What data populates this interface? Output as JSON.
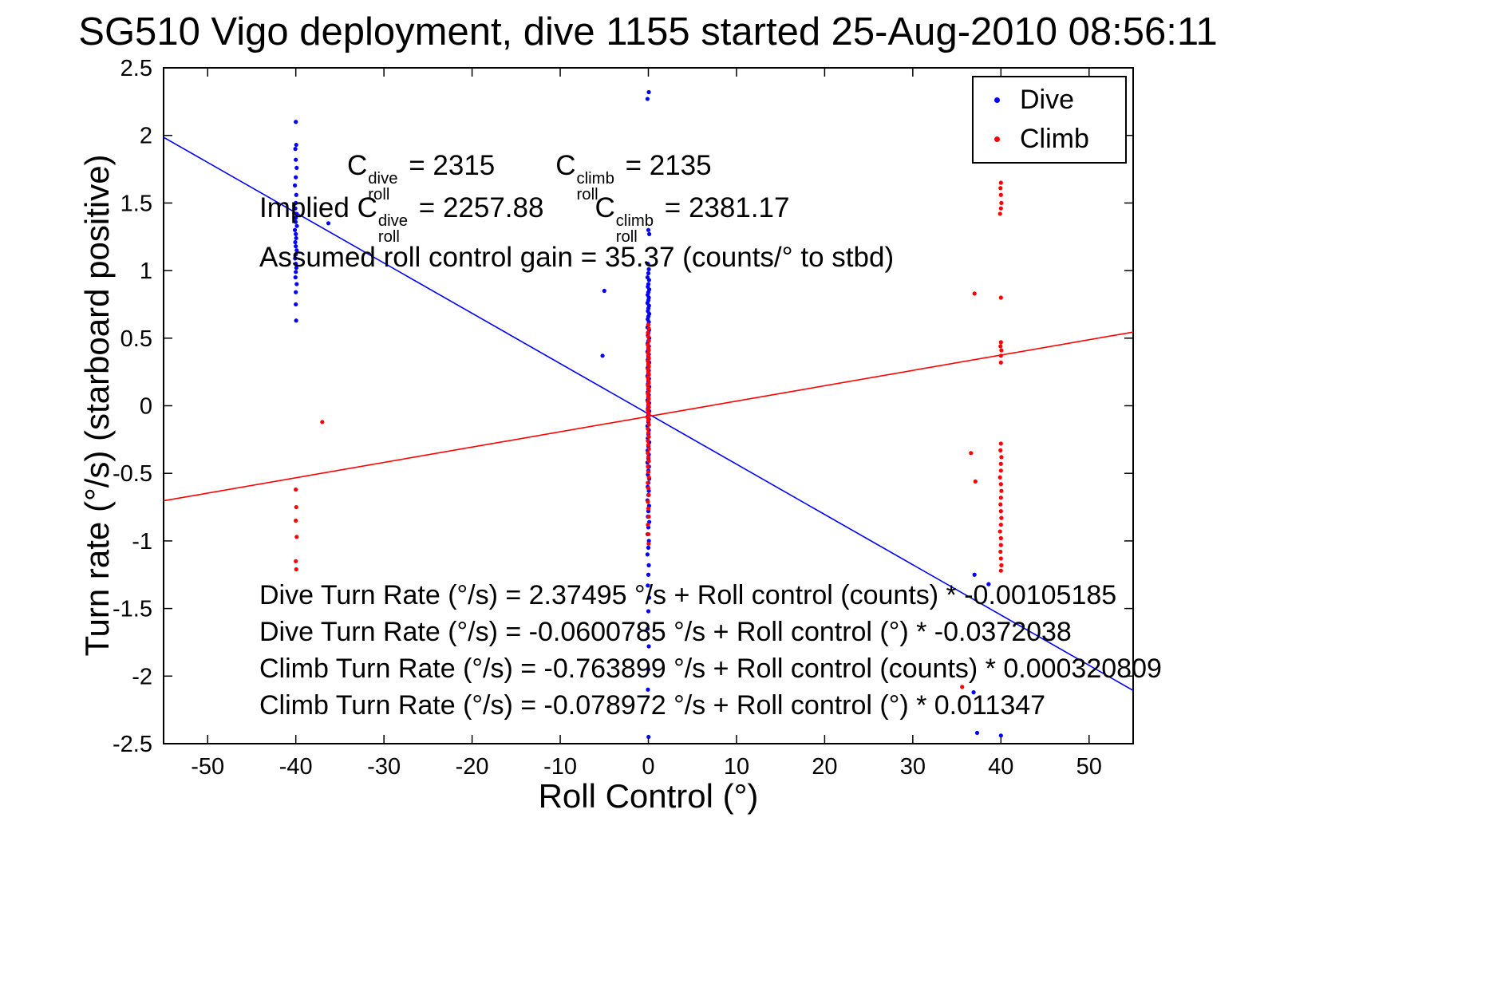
{
  "chart_data": {
    "type": "scatter",
    "title": "SG510 Vigo deployment, dive 1155 started 25-Aug-2010 08:56:11",
    "xlabel": "Roll Control (°)",
    "ylabel": "Turn rate (°/s) (starboard positive)",
    "xlim": [
      -55,
      55
    ],
    "ylim": [
      -2.5,
      2.5
    ],
    "xticks": [
      -50,
      -40,
      -30,
      -20,
      -10,
      0,
      10,
      20,
      30,
      40,
      50
    ],
    "yticks": [
      -2.5,
      -2,
      -1.5,
      -1,
      -0.5,
      0,
      0.5,
      1,
      1.5,
      2,
      2.5
    ],
    "grid": false,
    "axis_color": "#000000",
    "legend": {
      "position": "top-right",
      "entries": [
        {
          "label": "Dive",
          "color": "#0000ff"
        },
        {
          "label": "Climb",
          "color": "#ff0000"
        }
      ]
    },
    "series": [
      {
        "name": "Dive",
        "color": "#0000ff",
        "marker": "dot",
        "points": [
          [
            -40,
            2.1
          ],
          [
            -39.95,
            1.93
          ],
          [
            -40.05,
            1.9
          ],
          [
            -40,
            1.82
          ],
          [
            -39.9,
            1.76
          ],
          [
            -40,
            1.69
          ],
          [
            -40.1,
            1.63
          ],
          [
            -39.95,
            1.56
          ],
          [
            -40,
            1.5
          ],
          [
            -40.05,
            1.46
          ],
          [
            -39.9,
            1.42
          ],
          [
            -40,
            1.39
          ],
          [
            -40.02,
            1.36
          ],
          [
            -39.88,
            1.33
          ],
          [
            -40.1,
            1.3
          ],
          [
            -40,
            1.27
          ],
          [
            -39.96,
            1.24
          ],
          [
            -40.06,
            1.21
          ],
          [
            -40,
            1.18
          ],
          [
            -39.9,
            1.15
          ],
          [
            -40,
            1.12
          ],
          [
            -40.08,
            1.09
          ],
          [
            -40,
            1.05
          ],
          [
            -39.94,
            1.02
          ],
          [
            -40,
            0.99
          ],
          [
            -40.04,
            0.95
          ],
          [
            -39.9,
            0.9
          ],
          [
            -40,
            0.84
          ],
          [
            -40,
            0.75
          ],
          [
            -39.96,
            0.63
          ],
          [
            -36.3,
            1.35
          ],
          [
            -5,
            0.85
          ],
          [
            -5.2,
            0.37
          ],
          [
            0.05,
            2.32
          ],
          [
            -0.1,
            2.27
          ],
          [
            0,
            1.3
          ],
          [
            0.1,
            1.27
          ],
          [
            -0.05,
            1.05
          ],
          [
            0.05,
            1.01
          ],
          [
            0,
            0.98
          ],
          [
            -0.1,
            0.95
          ],
          [
            0.08,
            0.93
          ],
          [
            0,
            0.9
          ],
          [
            -0.06,
            0.88
          ],
          [
            0.1,
            0.86
          ],
          [
            0,
            0.84
          ],
          [
            -0.08,
            0.82
          ],
          [
            0.05,
            0.8
          ],
          [
            0,
            0.78
          ],
          [
            -0.1,
            0.76
          ],
          [
            0.07,
            0.74
          ],
          [
            0,
            0.72
          ],
          [
            -0.05,
            0.7
          ],
          [
            0.1,
            0.68
          ],
          [
            0,
            0.66
          ],
          [
            -0.07,
            0.64
          ],
          [
            0.05,
            0.62
          ],
          [
            0,
            0.6
          ],
          [
            -0.1,
            0.58
          ],
          [
            0.08,
            0.56
          ],
          [
            0,
            0.54
          ],
          [
            -0.05,
            0.52
          ],
          [
            0.1,
            0.5
          ],
          [
            0,
            0.48
          ],
          [
            -0.08,
            0.46
          ],
          [
            0.06,
            0.44
          ],
          [
            0,
            0.42
          ],
          [
            -0.1,
            0.4
          ],
          [
            0.05,
            0.38
          ],
          [
            0,
            0.36
          ],
          [
            -0.06,
            0.34
          ],
          [
            0.1,
            0.32
          ],
          [
            0,
            0.3
          ],
          [
            -0.08,
            0.28
          ],
          [
            0.05,
            0.26
          ],
          [
            0,
            0.24
          ],
          [
            -0.1,
            0.22
          ],
          [
            0.07,
            0.2
          ],
          [
            0,
            0.18
          ],
          [
            -0.05,
            0.16
          ],
          [
            0.1,
            0.14
          ],
          [
            0,
            0.12
          ],
          [
            -0.07,
            0.1
          ],
          [
            0.05,
            0.08
          ],
          [
            0,
            0.06
          ],
          [
            -0.1,
            0.04
          ],
          [
            0.08,
            0.02
          ],
          [
            0,
            0
          ],
          [
            -0.05,
            -0.02
          ],
          [
            0.1,
            -0.04
          ],
          [
            0,
            -0.06
          ],
          [
            -0.08,
            -0.08
          ],
          [
            0.06,
            -0.1
          ],
          [
            0,
            -0.12
          ],
          [
            -0.1,
            -0.15
          ],
          [
            0.05,
            -0.18
          ],
          [
            0,
            -0.21
          ],
          [
            -0.06,
            -0.24
          ],
          [
            0.1,
            -0.27
          ],
          [
            0,
            -0.3
          ],
          [
            -0.08,
            -0.33
          ],
          [
            0.05,
            -0.36
          ],
          [
            0,
            -0.39
          ],
          [
            -0.1,
            -0.42
          ],
          [
            0.07,
            -0.45
          ],
          [
            0,
            -0.48
          ],
          [
            -0.05,
            -0.51
          ],
          [
            0.1,
            -0.54
          ],
          [
            0,
            -0.57
          ],
          [
            -0.07,
            -0.6
          ],
          [
            0.05,
            -0.63
          ],
          [
            0,
            -0.66
          ],
          [
            -0.1,
            -0.7
          ],
          [
            0.08,
            -0.74
          ],
          [
            0,
            -0.78
          ],
          [
            -0.05,
            -0.82
          ],
          [
            0.1,
            -0.86
          ],
          [
            0,
            -0.9
          ],
          [
            -0.08,
            -0.95
          ],
          [
            0.06,
            -1.0
          ],
          [
            0,
            -1.05
          ],
          [
            -0.1,
            -1.1
          ],
          [
            0.05,
            -1.18
          ],
          [
            0,
            -1.25
          ],
          [
            -0.06,
            -1.33
          ],
          [
            0.1,
            -1.42
          ],
          [
            0,
            -1.52
          ],
          [
            -0.08,
            -1.65
          ],
          [
            0.05,
            -1.78
          ],
          [
            0,
            -1.95
          ],
          [
            -0.05,
            -2.1
          ],
          [
            0.02,
            -2.45
          ],
          [
            37,
            -1.25
          ],
          [
            38.6,
            -1.32
          ],
          [
            36.9,
            -2.12
          ],
          [
            40,
            -2.44
          ],
          [
            37.3,
            -2.42
          ]
        ]
      },
      {
        "name": "Climb",
        "color": "#ff0000",
        "marker": "dot",
        "points": [
          [
            40,
            1.65
          ],
          [
            39.95,
            1.61
          ],
          [
            40,
            1.56
          ],
          [
            40.05,
            1.5
          ],
          [
            40,
            1.46
          ],
          [
            39.9,
            1.42
          ],
          [
            37,
            0.83
          ],
          [
            40,
            0.8
          ],
          [
            40,
            0.47
          ],
          [
            39.95,
            0.44
          ],
          [
            40.05,
            0.41
          ],
          [
            40,
            0.37
          ],
          [
            40,
            0.32
          ],
          [
            40,
            -0.28
          ],
          [
            39.95,
            -0.33
          ],
          [
            40.05,
            -0.38
          ],
          [
            40,
            -0.43
          ],
          [
            36.6,
            -0.35
          ],
          [
            37.1,
            -0.56
          ],
          [
            40,
            -0.48
          ],
          [
            39.9,
            -0.53
          ],
          [
            40,
            -0.58
          ],
          [
            40.05,
            -0.63
          ],
          [
            40,
            -0.68
          ],
          [
            39.95,
            -0.73
          ],
          [
            40,
            -0.78
          ],
          [
            40.05,
            -0.83
          ],
          [
            40,
            -0.88
          ],
          [
            39.9,
            -0.93
          ],
          [
            40,
            -0.98
          ],
          [
            40,
            -1.03
          ],
          [
            39.95,
            -1.08
          ],
          [
            40,
            -1.13
          ],
          [
            40.05,
            -1.18
          ],
          [
            40,
            -1.22
          ],
          [
            35.6,
            -2.08
          ],
          [
            -40,
            -0.62
          ],
          [
            -39.95,
            -0.75
          ],
          [
            -40,
            -0.85
          ],
          [
            -39.9,
            -0.97
          ],
          [
            -40,
            -1.15
          ],
          [
            -39.95,
            -1.21
          ],
          [
            -37,
            -0.12
          ],
          [
            0,
            0.6
          ],
          [
            0.05,
            0.57
          ],
          [
            -0.05,
            0.54
          ],
          [
            0,
            0.51
          ],
          [
            0.06,
            0.48
          ],
          [
            -0.06,
            0.45
          ],
          [
            0,
            0.43
          ],
          [
            0.05,
            0.41
          ],
          [
            -0.05,
            0.39
          ],
          [
            0,
            0.37
          ],
          [
            0.06,
            0.35
          ],
          [
            -0.06,
            0.33
          ],
          [
            0,
            0.31
          ],
          [
            0.05,
            0.29
          ],
          [
            -0.05,
            0.27
          ],
          [
            0,
            0.25
          ],
          [
            0.06,
            0.23
          ],
          [
            -0.06,
            0.21
          ],
          [
            0,
            0.19
          ],
          [
            0.05,
            0.17
          ],
          [
            -0.05,
            0.15
          ],
          [
            0,
            0.13
          ],
          [
            0.06,
            0.11
          ],
          [
            -0.06,
            0.09
          ],
          [
            0,
            0.07
          ],
          [
            0.05,
            0.05
          ],
          [
            -0.05,
            0.03
          ],
          [
            0,
            0.01
          ],
          [
            0.06,
            -0.01
          ],
          [
            -0.06,
            -0.03
          ],
          [
            0,
            -0.05
          ],
          [
            0.05,
            -0.07
          ],
          [
            -0.05,
            -0.09
          ],
          [
            0,
            -0.11
          ],
          [
            0.06,
            -0.14
          ],
          [
            -0.06,
            -0.17
          ],
          [
            0,
            -0.2
          ],
          [
            0.05,
            -0.23
          ],
          [
            -0.05,
            -0.26
          ],
          [
            0,
            -0.29
          ],
          [
            0.06,
            -0.32
          ],
          [
            -0.06,
            -0.35
          ],
          [
            0,
            -0.38
          ],
          [
            0.05,
            -0.41
          ],
          [
            -0.05,
            -0.45
          ],
          [
            0,
            -0.49
          ],
          [
            0.06,
            -0.53
          ],
          [
            -0.06,
            -0.57
          ],
          [
            0,
            -0.61
          ],
          [
            0.05,
            -0.66
          ],
          [
            -0.05,
            -0.71
          ],
          [
            0,
            -0.76
          ],
          [
            0.05,
            -0.82
          ],
          [
            -0.05,
            -0.88
          ],
          [
            0,
            -0.95
          ],
          [
            0.03,
            -1.02
          ]
        ]
      }
    ],
    "fit_lines": [
      {
        "name": "dive-fit",
        "color": "#0000ff",
        "intercept": -0.0600785,
        "slope": -0.0372038
      },
      {
        "name": "climb-fit",
        "color": "#ff0000",
        "intercept": -0.078972,
        "slope": 0.011347
      }
    ]
  },
  "annotations": {
    "coeff": {
      "term1": {
        "pre": "C",
        "sup": "dive",
        "sub": "roll",
        "post": " = 2315"
      },
      "term2": {
        "pre": "C",
        "sup": "climb",
        "sub": "roll",
        "post": " = 2135"
      },
      "implied_prefix": "Implied ",
      "term3": {
        "pre": "C",
        "sup": "dive",
        "sub": "roll",
        "post": " = 2257.88"
      },
      "term4": {
        "pre": "C",
        "sup": "climb",
        "sub": "roll",
        "post": " = 2381.17"
      },
      "gain_line": "Assumed roll control gain = 35.37 (counts/° to stbd)"
    },
    "equations": [
      "Dive Turn Rate (°/s) = 2.37495 °/s + Roll control (counts) * -0.00105185",
      "Dive Turn Rate (°/s) = -0.0600785 °/s + Roll control (°) * -0.0372038",
      "Climb Turn Rate (°/s) = -0.763899 °/s + Roll control (counts) * 0.000320809",
      "Climb Turn Rate (°/s) = -0.078972 °/s + Roll control (°) * 0.011347"
    ]
  }
}
